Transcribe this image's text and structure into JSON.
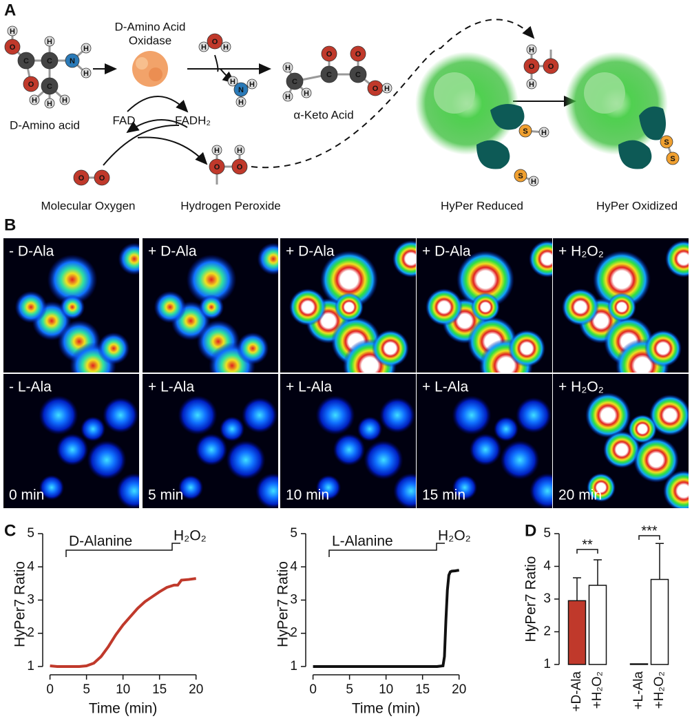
{
  "panel_labels": {
    "a": "A",
    "b": "B",
    "c": "C",
    "d": "D"
  },
  "atoms": {
    "carbon": "C",
    "oxygen": "O",
    "nitrogen": "N",
    "hydrogen": "H",
    "sulfur": "S"
  },
  "panel_a": {
    "enzyme": [
      "D-Amino Acid",
      "Oxidase"
    ],
    "substrate": "D-Amino acid",
    "product": "α-Keto Acid",
    "cofactor_oxidized": "FAD",
    "cofactor_reduced": "FADH₂",
    "oxygen": "Molecular Oxygen",
    "peroxide": "Hydrogen Peroxide",
    "sensor_reduced": "HyPer Reduced",
    "sensor_oxidized": "HyPer Oxidized"
  },
  "panel_b": {
    "top_labels": [
      "- D-Ala",
      "+ D-Ala",
      "+ D-Ala",
      "+ D-Ala",
      "+ H₂O₂"
    ],
    "bottom_labels": [
      "- L-Ala",
      "+ L-Ala",
      "+ L-Ala",
      "+ L-Ala",
      "+ H₂O₂"
    ],
    "times": [
      "0 min",
      "5 min",
      "10 min",
      "15 min",
      "20 min"
    ]
  },
  "chart_data": [
    {
      "type": "line",
      "treatment": "D-Alanine",
      "stimulus": "H₂O₂",
      "xlabel": "Time (min)",
      "ylabel": "HyPer7 Ratio",
      "color": "#c0392b",
      "x": [
        0,
        1,
        2,
        3,
        4,
        5,
        6,
        7,
        8,
        9,
        10,
        11,
        12,
        13,
        14,
        15,
        16,
        17,
        17.5,
        18,
        19,
        20
      ],
      "values": [
        1.02,
        1.0,
        1.0,
        1.0,
        1.0,
        1.02,
        1.1,
        1.3,
        1.6,
        1.95,
        2.25,
        2.5,
        2.75,
        2.95,
        3.1,
        3.25,
        3.38,
        3.45,
        3.45,
        3.6,
        3.62,
        3.65
      ],
      "xlim": [
        -1,
        20.5
      ],
      "ylim": [
        0.75,
        5
      ],
      "xticks": [
        0,
        5,
        10,
        15,
        20
      ],
      "yticks": [
        1,
        2,
        3,
        4,
        5
      ]
    },
    {
      "type": "line",
      "treatment": "L-Alanine",
      "stimulus": "H₂O₂",
      "xlabel": "Time (min)",
      "ylabel": "HyPer7 Ratio",
      "color": "#111111",
      "x": [
        0,
        1,
        2,
        3,
        4,
        5,
        6,
        7,
        8,
        9,
        10,
        11,
        12,
        13,
        14,
        15,
        16,
        17,
        17.8,
        18,
        18.2,
        18.4,
        18.6,
        18.8,
        19,
        19.5,
        20
      ],
      "values": [
        1.0,
        1.0,
        1.0,
        1.0,
        1.0,
        1.0,
        1.0,
        1.0,
        1.0,
        1.0,
        1.0,
        1.0,
        1.0,
        1.0,
        1.0,
        1.0,
        1.0,
        1.0,
        1.02,
        1.3,
        2.4,
        3.3,
        3.75,
        3.85,
        3.87,
        3.88,
        3.9
      ],
      "xlim": [
        -1,
        20.5
      ],
      "ylim": [
        0.75,
        5
      ],
      "xticks": [
        0,
        5,
        10,
        15,
        20
      ],
      "yticks": [
        1,
        2,
        3,
        4,
        5
      ]
    },
    {
      "type": "bar",
      "ylabel": "HyPer7 Ratio",
      "categories": [
        "+D-Ala",
        "+H₂O₂",
        "+L-Ala",
        "+H₂O₂"
      ],
      "values": [
        2.95,
        3.42,
        1.02,
        3.6
      ],
      "errors": [
        0.7,
        0.78,
        0,
        1.1
      ],
      "colors": [
        "#c0392b",
        "#ffffff",
        "#ffffff",
        "#ffffff"
      ],
      "significance": [
        "**",
        "***"
      ],
      "ylim": [
        1,
        5
      ],
      "yticks": [
        1,
        2,
        3,
        4,
        5
      ]
    }
  ]
}
